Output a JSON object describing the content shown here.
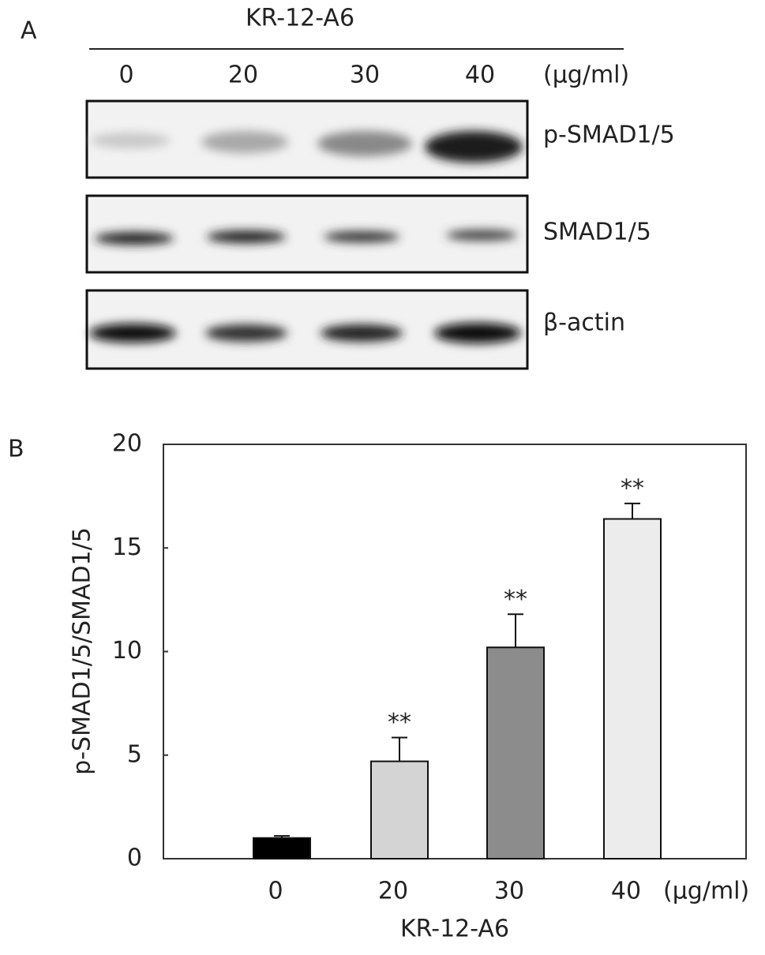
{
  "panel_a": {
    "panel_label": "A",
    "treatment": "KR-12-A6",
    "lanes": [
      "0",
      "20",
      "30",
      "40"
    ],
    "unit": "(μg/ml)",
    "bands": [
      "p-SMAD1/5",
      "SMAD1/5",
      "β-actin"
    ]
  },
  "chart_data": {
    "type": "bar",
    "panel_label": "B",
    "ylabel": "p-SMAD1/5/SMAD1/5",
    "xlabel": "KR-12-A6",
    "x_unit": "(μg/ml)",
    "categories": [
      "0",
      "20",
      "30",
      "40"
    ],
    "values": [
      1.0,
      4.7,
      10.2,
      16.4
    ],
    "errors": [
      0.1,
      1.15,
      1.6,
      0.75
    ],
    "colors": [
      "#000000",
      "#d4d4d4",
      "#8c8c8c",
      "#ececec"
    ],
    "significance": [
      null,
      "**",
      "**",
      "**"
    ],
    "ylim": [
      0,
      20
    ],
    "yticks": [
      0,
      5,
      10,
      15,
      20
    ]
  }
}
